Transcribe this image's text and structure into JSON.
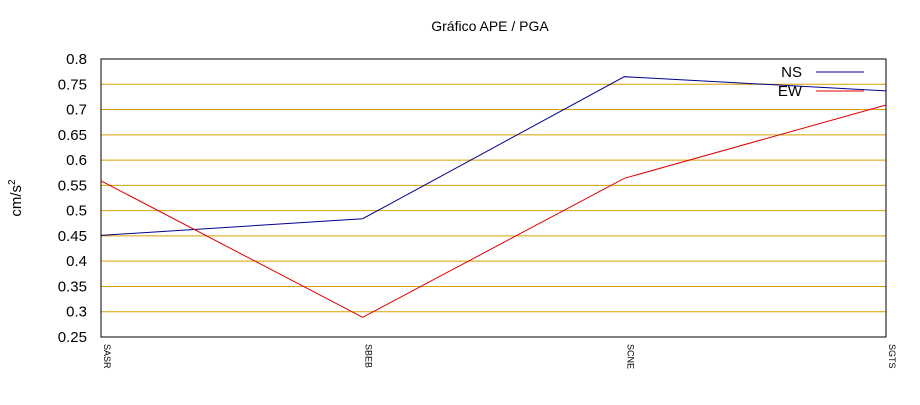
{
  "chart_data": {
    "type": "line",
    "title": "Gráfico  APE / PGA",
    "xlabel": "",
    "ylabel": "cm/s",
    "ylabel_superscript": "2",
    "categories": [
      "SASR",
      "SBEB",
      "SCNE",
      "SGTS"
    ],
    "ylim": [
      0.25,
      0.8
    ],
    "yticks": [
      0.25,
      0.3,
      0.35,
      0.4,
      0.45,
      0.5,
      0.55,
      0.6,
      0.65,
      0.7,
      0.75,
      0.8
    ],
    "ytick_labels": [
      "0.25",
      "0.3",
      "0.35",
      "0.4",
      "0.45",
      "0.5",
      "0.55",
      "0.6",
      "0.65",
      "0.7",
      "0.75",
      "0.8"
    ],
    "grid": "horizontal",
    "grid_color": "#d9a000",
    "legend_position": "top-right",
    "series": [
      {
        "name": "NS",
        "color": "#00008b",
        "values": [
          0.451,
          0.484,
          0.765,
          0.737
        ]
      },
      {
        "name": "EW",
        "color": "#e00000",
        "values": [
          0.559,
          0.289,
          0.564,
          0.709
        ]
      }
    ]
  }
}
